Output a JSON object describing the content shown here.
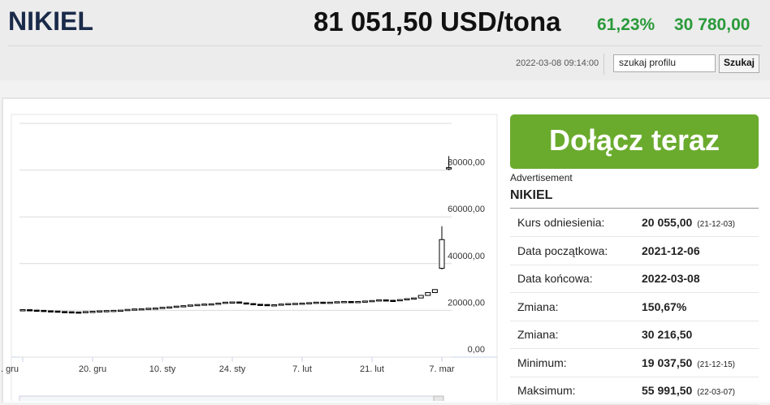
{
  "header": {
    "title": "NIKIEL",
    "price": "81 051,50 USD/tona",
    "change_pct": "61,23%",
    "change_abs": "30 780,00",
    "timestamp": "2022-03-08 09:14:00",
    "search_placeholder": "szukaj profilu",
    "search_button": "Szukaj"
  },
  "ad": {
    "button": "Dołącz teraz",
    "label": "Advertisement"
  },
  "profile": {
    "title": "NIKIEL",
    "rows": [
      {
        "label": "Kurs odniesienia:",
        "value": "20 055,00",
        "date": "(21-12-03)"
      },
      {
        "label": "Data początkowa:",
        "value": "2021-12-06"
      },
      {
        "label": "Data końcowa:",
        "value": "2022-03-08"
      },
      {
        "label": "Zmiana:",
        "value": "150,67%"
      },
      {
        "label": "Zmiana:",
        "value": "30 216,50"
      },
      {
        "label": "Minimum:",
        "value": "19 037,50",
        "date": "(21-12-15)"
      },
      {
        "label": "Maksimum:",
        "value": "55 991,50",
        "date": "(22-03-07)"
      }
    ]
  },
  "chart_data": {
    "type": "candlestick",
    "categories": [
      ". gru",
      null,
      null,
      null,
      null,
      null,
      null,
      null,
      null,
      null,
      "20. gru",
      null,
      null,
      null,
      null,
      null,
      null,
      null,
      null,
      null,
      "10. sty",
      null,
      null,
      null,
      null,
      null,
      null,
      null,
      null,
      null,
      "24. sty",
      null,
      null,
      null,
      null,
      null,
      null,
      null,
      null,
      null,
      "7. lut",
      null,
      null,
      null,
      null,
      null,
      null,
      null,
      null,
      null,
      "21. lut",
      null,
      null,
      null,
      null,
      null,
      null,
      null,
      null,
      null,
      "7. mar",
      null
    ],
    "open": [
      20200,
      20300,
      20100,
      20000,
      19800,
      19700,
      19500,
      19400,
      19300,
      19200,
      19500,
      19600,
      19800,
      19900,
      20000,
      20100,
      20400,
      20600,
      20700,
      20900,
      21000,
      21300,
      21500,
      21800,
      22000,
      22300,
      22500,
      22700,
      22800,
      23100,
      23500,
      23600,
      23200,
      22900,
      22600,
      22500,
      22300,
      22400,
      22700,
      22900,
      23000,
      23100,
      23300,
      23500,
      23400,
      23500,
      23700,
      23800,
      23600,
      23800,
      24000,
      24200,
      24500,
      24300,
      24100,
      24600,
      25000,
      25300,
      26400,
      27600,
      38000,
      80500
    ],
    "high": [
      20400,
      20400,
      20200,
      20100,
      19900,
      19800,
      19600,
      19500,
      19400,
      19600,
      19700,
      19900,
      20000,
      20100,
      20200,
      20500,
      20700,
      20800,
      21000,
      21100,
      21400,
      21600,
      21900,
      22100,
      22400,
      22600,
      22800,
      22900,
      23200,
      23600,
      23700,
      23700,
      23300,
      23000,
      22700,
      22600,
      22500,
      22800,
      23000,
      23100,
      23200,
      23400,
      23600,
      23600,
      23600,
      23800,
      23900,
      23900,
      23900,
      24100,
      24300,
      24600,
      24600,
      24400,
      24700,
      25100,
      25400,
      26500,
      27700,
      29000,
      55991.5,
      86000
    ],
    "low": [
      20100,
      20000,
      19900,
      19700,
      19600,
      19400,
      19300,
      19200,
      19037.5,
      19100,
      19400,
      19500,
      19700,
      19800,
      19900,
      20000,
      20300,
      20500,
      20600,
      20800,
      20900,
      21200,
      21400,
      21700,
      21900,
      22200,
      22400,
      22600,
      22700,
      23000,
      23400,
      23100,
      22800,
      22500,
      22400,
      22200,
      22200,
      22300,
      22600,
      22800,
      22900,
      23000,
      23200,
      23300,
      23300,
      23400,
      23600,
      23500,
      23500,
      23700,
      23900,
      24100,
      24200,
      24000,
      24000,
      24500,
      24900,
      25200,
      26300,
      27500,
      37500,
      80000
    ],
    "close": [
      20300,
      20100,
      20000,
      19800,
      19700,
      19500,
      19400,
      19300,
      19200,
      19500,
      19600,
      19800,
      19900,
      20000,
      20100,
      20400,
      20600,
      20700,
      20900,
      21000,
      21300,
      21500,
      21800,
      22000,
      22300,
      22500,
      22700,
      22800,
      23100,
      23500,
      23600,
      23200,
      22900,
      22600,
      22500,
      22300,
      22400,
      22700,
      22900,
      23000,
      23100,
      23300,
      23500,
      23400,
      23500,
      23700,
      23800,
      23600,
      23800,
      24000,
      24200,
      24500,
      24300,
      24100,
      24600,
      25000,
      25300,
      26400,
      27600,
      28900,
      50271.5,
      81051.5
    ],
    "up_color": "#ffffff",
    "down_color": "#000000",
    "ylim": [
      0,
      100000
    ],
    "yticks": [
      {
        "value": 0,
        "label": "0,00"
      },
      {
        "value": 20000,
        "label": "20000,00"
      },
      {
        "value": 40000,
        "label": "40000,00"
      },
      {
        "value": 60000,
        "label": "60000,00"
      },
      {
        "value": 80000,
        "label": "80000,00"
      }
    ],
    "grid": true
  }
}
